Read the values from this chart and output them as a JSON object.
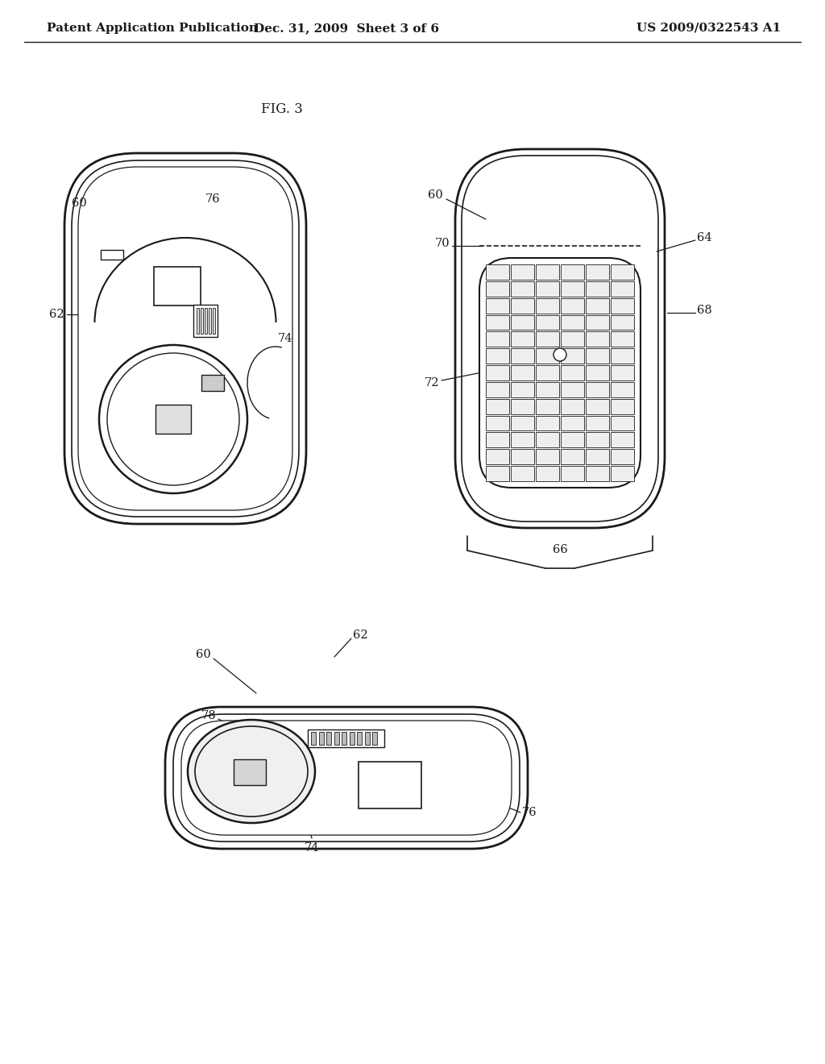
{
  "bg_color": "#ffffff",
  "header_left": "Patent Application Publication",
  "header_mid": "Dec. 31, 2009  Sheet 3 of 6",
  "header_right": "US 2009/0322543 A1",
  "fig_label": "FIG. 3",
  "line_color": "#1a1a1a",
  "text_color": "#1a1a1a"
}
